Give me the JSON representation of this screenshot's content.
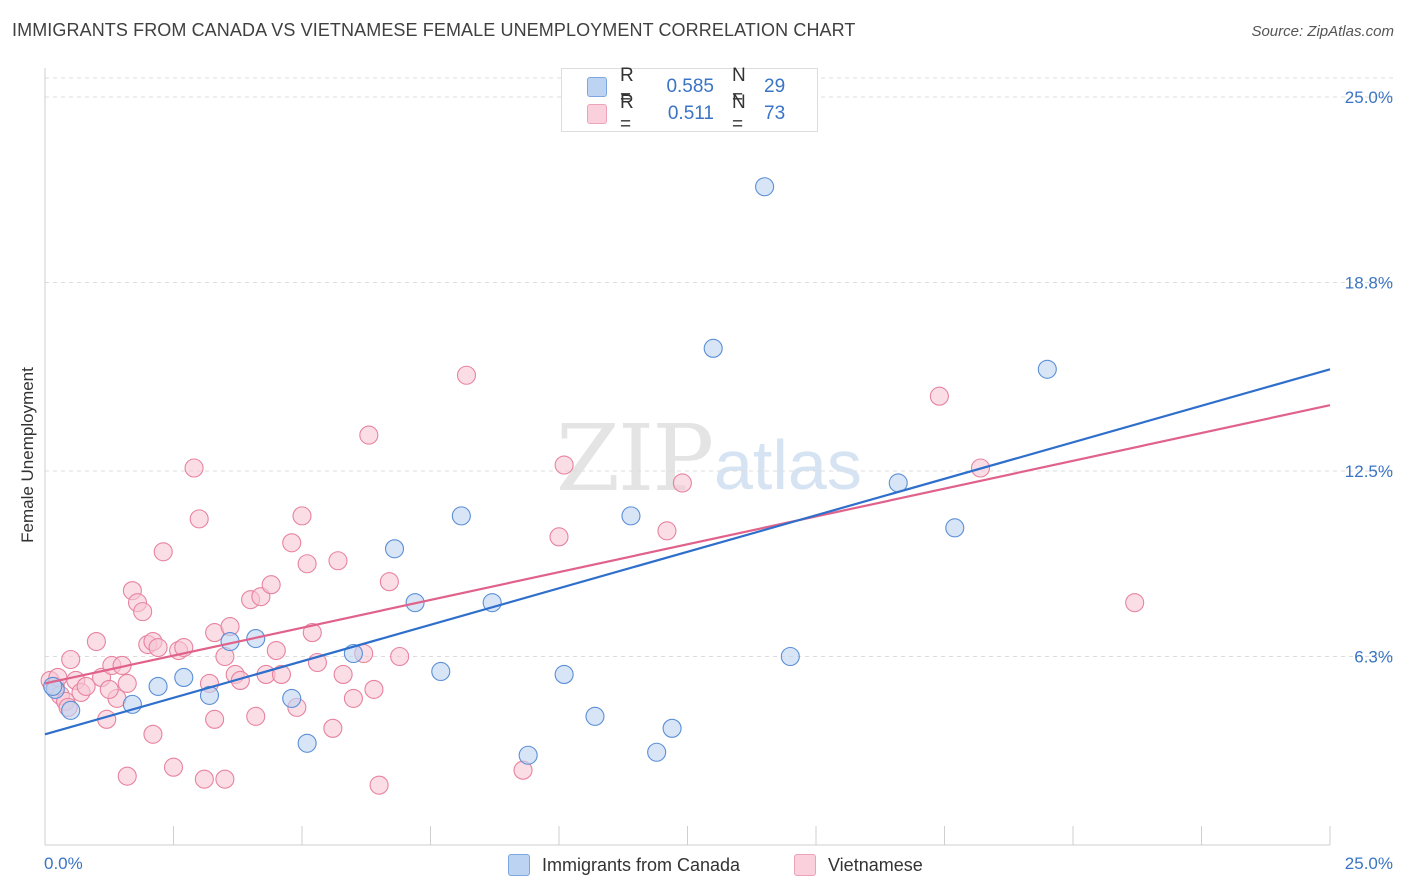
{
  "title": "IMMIGRANTS FROM CANADA VS VIETNAMESE FEMALE UNEMPLOYMENT CORRELATION CHART",
  "source": "Source: ZipAtlas.com",
  "watermark": {
    "zip": "ZIP",
    "atlas": "atlas"
  },
  "legend_top": {
    "rows": [
      {
        "r_label": "R =",
        "r_value": "0.585",
        "n_label": "N =",
        "n_value": "29",
        "color": "#a9c6ee"
      },
      {
        "r_label": "R =",
        "r_value": "0.511",
        "n_label": "N =",
        "n_value": "73",
        "color": "#f6b8cc"
      }
    ]
  },
  "legend_bottom": [
    "Immigrants from Canada",
    "Vietnamese"
  ],
  "chart_data": {
    "type": "scatter",
    "title": "IMMIGRANTS FROM CANADA VS VIETNAMESE FEMALE UNEMPLOYMENT CORRELATION CHART",
    "xlabel": "",
    "ylabel": "Female Unemployment",
    "xlim": [
      0,
      25
    ],
    "ylim": [
      0,
      25
    ],
    "x_tick_labels": [
      "0.0%",
      "25.0%"
    ],
    "y_tick_labels": [
      "6.3%",
      "12.5%",
      "18.8%",
      "25.0%"
    ],
    "y_ticks": [
      6.3,
      12.5,
      18.8,
      25.0
    ],
    "grid": true,
    "legend_placement": "bottom",
    "series": [
      {
        "name": "Immigrants from Canada",
        "color": "#5b8fd6",
        "fill": "#bcd3f1",
        "line_color": "#2f6fcc",
        "trend": [
          [
            0,
            3.7
          ],
          [
            25,
            15.9
          ]
        ],
        "points": [
          [
            0.2,
            5.2
          ],
          [
            0.5,
            4.5
          ],
          [
            1.7,
            4.7
          ],
          [
            2.2,
            5.3
          ],
          [
            2.7,
            5.6
          ],
          [
            3.2,
            5.0
          ],
          [
            3.6,
            6.8
          ],
          [
            4.1,
            6.9
          ],
          [
            4.8,
            4.9
          ],
          [
            5.1,
            3.4
          ],
          [
            6.0,
            6.4
          ],
          [
            6.8,
            9.9
          ],
          [
            7.2,
            8.1
          ],
          [
            7.7,
            5.8
          ],
          [
            8.1,
            11.0
          ],
          [
            8.7,
            8.1
          ],
          [
            9.4,
            3.0
          ],
          [
            10.1,
            5.7
          ],
          [
            10.7,
            4.3
          ],
          [
            11.4,
            11.0
          ],
          [
            11.9,
            3.1
          ],
          [
            12.2,
            3.9
          ],
          [
            13.0,
            16.6
          ],
          [
            14.0,
            22.0
          ],
          [
            14.5,
            6.3
          ],
          [
            16.6,
            12.1
          ],
          [
            17.7,
            10.6
          ],
          [
            19.5,
            15.9
          ],
          [
            0.15,
            5.3
          ]
        ]
      },
      {
        "name": "Vietnamese",
        "color": "#e8839f",
        "fill": "#f7c6d4",
        "line_color": "#e0628b",
        "trend": [
          [
            0,
            5.4
          ],
          [
            25,
            14.7
          ]
        ],
        "points": [
          [
            0.1,
            5.5
          ],
          [
            0.2,
            5.3
          ],
          [
            0.3,
            5.0
          ],
          [
            0.4,
            4.8
          ],
          [
            0.5,
            6.2
          ],
          [
            0.6,
            5.5
          ],
          [
            0.7,
            5.1
          ],
          [
            0.8,
            5.3
          ],
          [
            1.0,
            6.8
          ],
          [
            1.1,
            5.6
          ],
          [
            1.2,
            4.2
          ],
          [
            1.3,
            6.0
          ],
          [
            1.4,
            4.9
          ],
          [
            1.5,
            6.0
          ],
          [
            1.6,
            5.4
          ],
          [
            1.6,
            2.3
          ],
          [
            1.7,
            8.5
          ],
          [
            1.8,
            8.1
          ],
          [
            1.9,
            7.8
          ],
          [
            2.0,
            6.7
          ],
          [
            2.1,
            3.7
          ],
          [
            2.1,
            6.8
          ],
          [
            2.2,
            6.6
          ],
          [
            2.3,
            9.8
          ],
          [
            2.5,
            2.6
          ],
          [
            2.6,
            6.5
          ],
          [
            2.7,
            6.6
          ],
          [
            2.9,
            12.6
          ],
          [
            3.0,
            10.9
          ],
          [
            3.1,
            2.2
          ],
          [
            3.2,
            5.4
          ],
          [
            3.3,
            4.2
          ],
          [
            3.3,
            7.1
          ],
          [
            3.5,
            2.2
          ],
          [
            3.5,
            6.3
          ],
          [
            3.6,
            7.3
          ],
          [
            3.7,
            5.7
          ],
          [
            3.8,
            5.5
          ],
          [
            4.0,
            8.2
          ],
          [
            4.1,
            4.3
          ],
          [
            4.2,
            8.3
          ],
          [
            4.3,
            5.7
          ],
          [
            4.4,
            8.7
          ],
          [
            4.5,
            6.5
          ],
          [
            4.6,
            5.7
          ],
          [
            4.8,
            10.1
          ],
          [
            4.9,
            4.6
          ],
          [
            5.0,
            11.0
          ],
          [
            5.1,
            9.4
          ],
          [
            5.2,
            7.1
          ],
          [
            5.3,
            6.1
          ],
          [
            5.6,
            3.9
          ],
          [
            5.7,
            9.5
          ],
          [
            5.8,
            5.7
          ],
          [
            6.0,
            4.9
          ],
          [
            6.2,
            6.4
          ],
          [
            6.3,
            13.7
          ],
          [
            6.4,
            5.2
          ],
          [
            6.5,
            2.0
          ],
          [
            6.7,
            8.8
          ],
          [
            6.9,
            6.3
          ],
          [
            8.2,
            15.7
          ],
          [
            9.3,
            2.5
          ],
          [
            10.0,
            10.3
          ],
          [
            10.1,
            12.7
          ],
          [
            12.1,
            10.5
          ],
          [
            12.4,
            12.1
          ],
          [
            17.4,
            15.0
          ],
          [
            18.2,
            12.6
          ],
          [
            21.2,
            8.1
          ],
          [
            0.25,
            5.6
          ],
          [
            0.45,
            4.6
          ],
          [
            1.25,
            5.2
          ]
        ]
      }
    ]
  }
}
